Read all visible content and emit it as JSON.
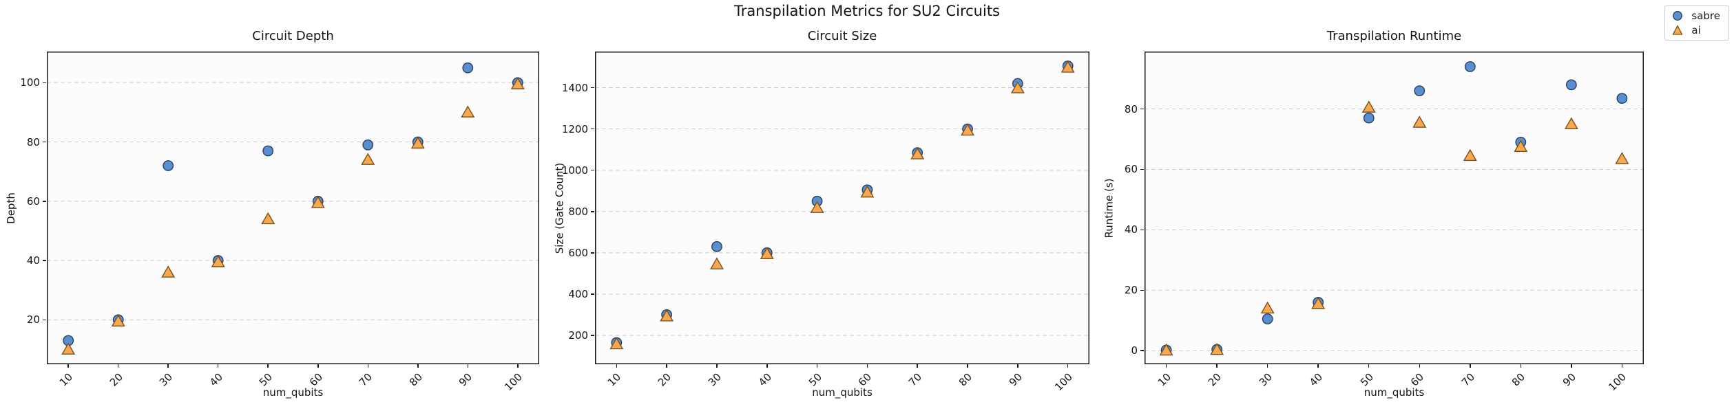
{
  "figure": {
    "suptitle": "Transpilation Metrics for SU2 Circuits"
  },
  "colors": {
    "sabre_fill": "#5b8ed0",
    "sabre_edge": "#26405f",
    "ai_fill": "#f7a850",
    "ai_edge": "#7e5016",
    "grid": "#c9c9d2",
    "spine": "#1a1a1a",
    "plot_bg": "#fcfcfc",
    "text": "#141414"
  },
  "legend": {
    "items": [
      {
        "label": "sabre",
        "marker": "circle",
        "fill": "#5b8ed0",
        "edge": "#26405f"
      },
      {
        "label": "ai",
        "marker": "triangle",
        "fill": "#f7a850",
        "edge": "#7e5016"
      }
    ]
  },
  "chart_data": [
    {
      "type": "scatter",
      "title": "Circuit Depth",
      "xlabel": "num_qubits",
      "ylabel": "Depth",
      "x": [
        10,
        20,
        30,
        40,
        50,
        60,
        70,
        80,
        90,
        100
      ],
      "xtick_labels": [
        "10",
        "20",
        "30",
        "40",
        "50",
        "60",
        "70",
        "80",
        "90",
        "100"
      ],
      "yticks": [
        20,
        40,
        60,
        80,
        100
      ],
      "xlim": [
        5.7,
        104.3
      ],
      "ylim": [
        5,
        110.5
      ],
      "grid": "horizontal-dashed",
      "legend_position": "figure-top-right",
      "series": [
        {
          "name": "sabre",
          "marker": "circle",
          "fill": "#5b8ed0",
          "edge": "#26405f",
          "values": [
            13,
            20,
            72,
            40,
            77,
            60,
            79,
            80,
            105,
            100
          ]
        },
        {
          "name": "ai",
          "marker": "triangle",
          "fill": "#f7a850",
          "edge": "#7e5016",
          "values": [
            10,
            19.5,
            36,
            39.5,
            54,
            59.5,
            74,
            79.5,
            90,
            99.5
          ]
        }
      ]
    },
    {
      "type": "scatter",
      "title": "Circuit Size",
      "xlabel": "num_qubits",
      "ylabel": "Size (Gate Count)",
      "x": [
        10,
        20,
        30,
        40,
        50,
        60,
        70,
        80,
        90,
        100
      ],
      "xtick_labels": [
        "10",
        "20",
        "30",
        "40",
        "50",
        "60",
        "70",
        "80",
        "90",
        "100"
      ],
      "yticks": [
        200,
        400,
        600,
        800,
        1000,
        1200,
        1400
      ],
      "xlim": [
        5.7,
        104.3
      ],
      "ylim": [
        60,
        1575
      ],
      "grid": "horizontal-dashed",
      "series": [
        {
          "name": "sabre",
          "marker": "circle",
          "fill": "#5b8ed0",
          "edge": "#26405f",
          "values": [
            165,
            300,
            630,
            600,
            850,
            905,
            1085,
            1200,
            1420,
            1505
          ]
        },
        {
          "name": "ai",
          "marker": "triangle",
          "fill": "#f7a850",
          "edge": "#7e5016",
          "values": [
            158,
            293,
            545,
            595,
            818,
            893,
            1078,
            1193,
            1398,
            1498
          ]
        }
      ]
    },
    {
      "type": "scatter",
      "title": "Transpilation Runtime",
      "xlabel": "num_qubits",
      "ylabel": "Runtime (s)",
      "x": [
        10,
        20,
        30,
        40,
        50,
        60,
        70,
        80,
        90,
        100
      ],
      "xtick_labels": [
        "10",
        "20",
        "30",
        "40",
        "50",
        "60",
        "70",
        "80",
        "90",
        "100"
      ],
      "yticks": [
        0,
        20,
        40,
        60,
        80
      ],
      "xlim": [
        5.7,
        104.3
      ],
      "ylim": [
        -4.5,
        99
      ],
      "grid": "horizontal-dashed",
      "series": [
        {
          "name": "sabre",
          "marker": "circle",
          "fill": "#5b8ed0",
          "edge": "#26405f",
          "values": [
            0.2,
            0.4,
            10.5,
            16,
            77,
            86,
            94,
            69,
            88,
            83.5
          ]
        },
        {
          "name": "ai",
          "marker": "triangle",
          "fill": "#f7a850",
          "edge": "#7e5016",
          "values": [
            0.1,
            0.3,
            14,
            15.5,
            80.5,
            75.5,
            64.5,
            67.5,
            75,
            63.5
          ]
        }
      ]
    }
  ]
}
